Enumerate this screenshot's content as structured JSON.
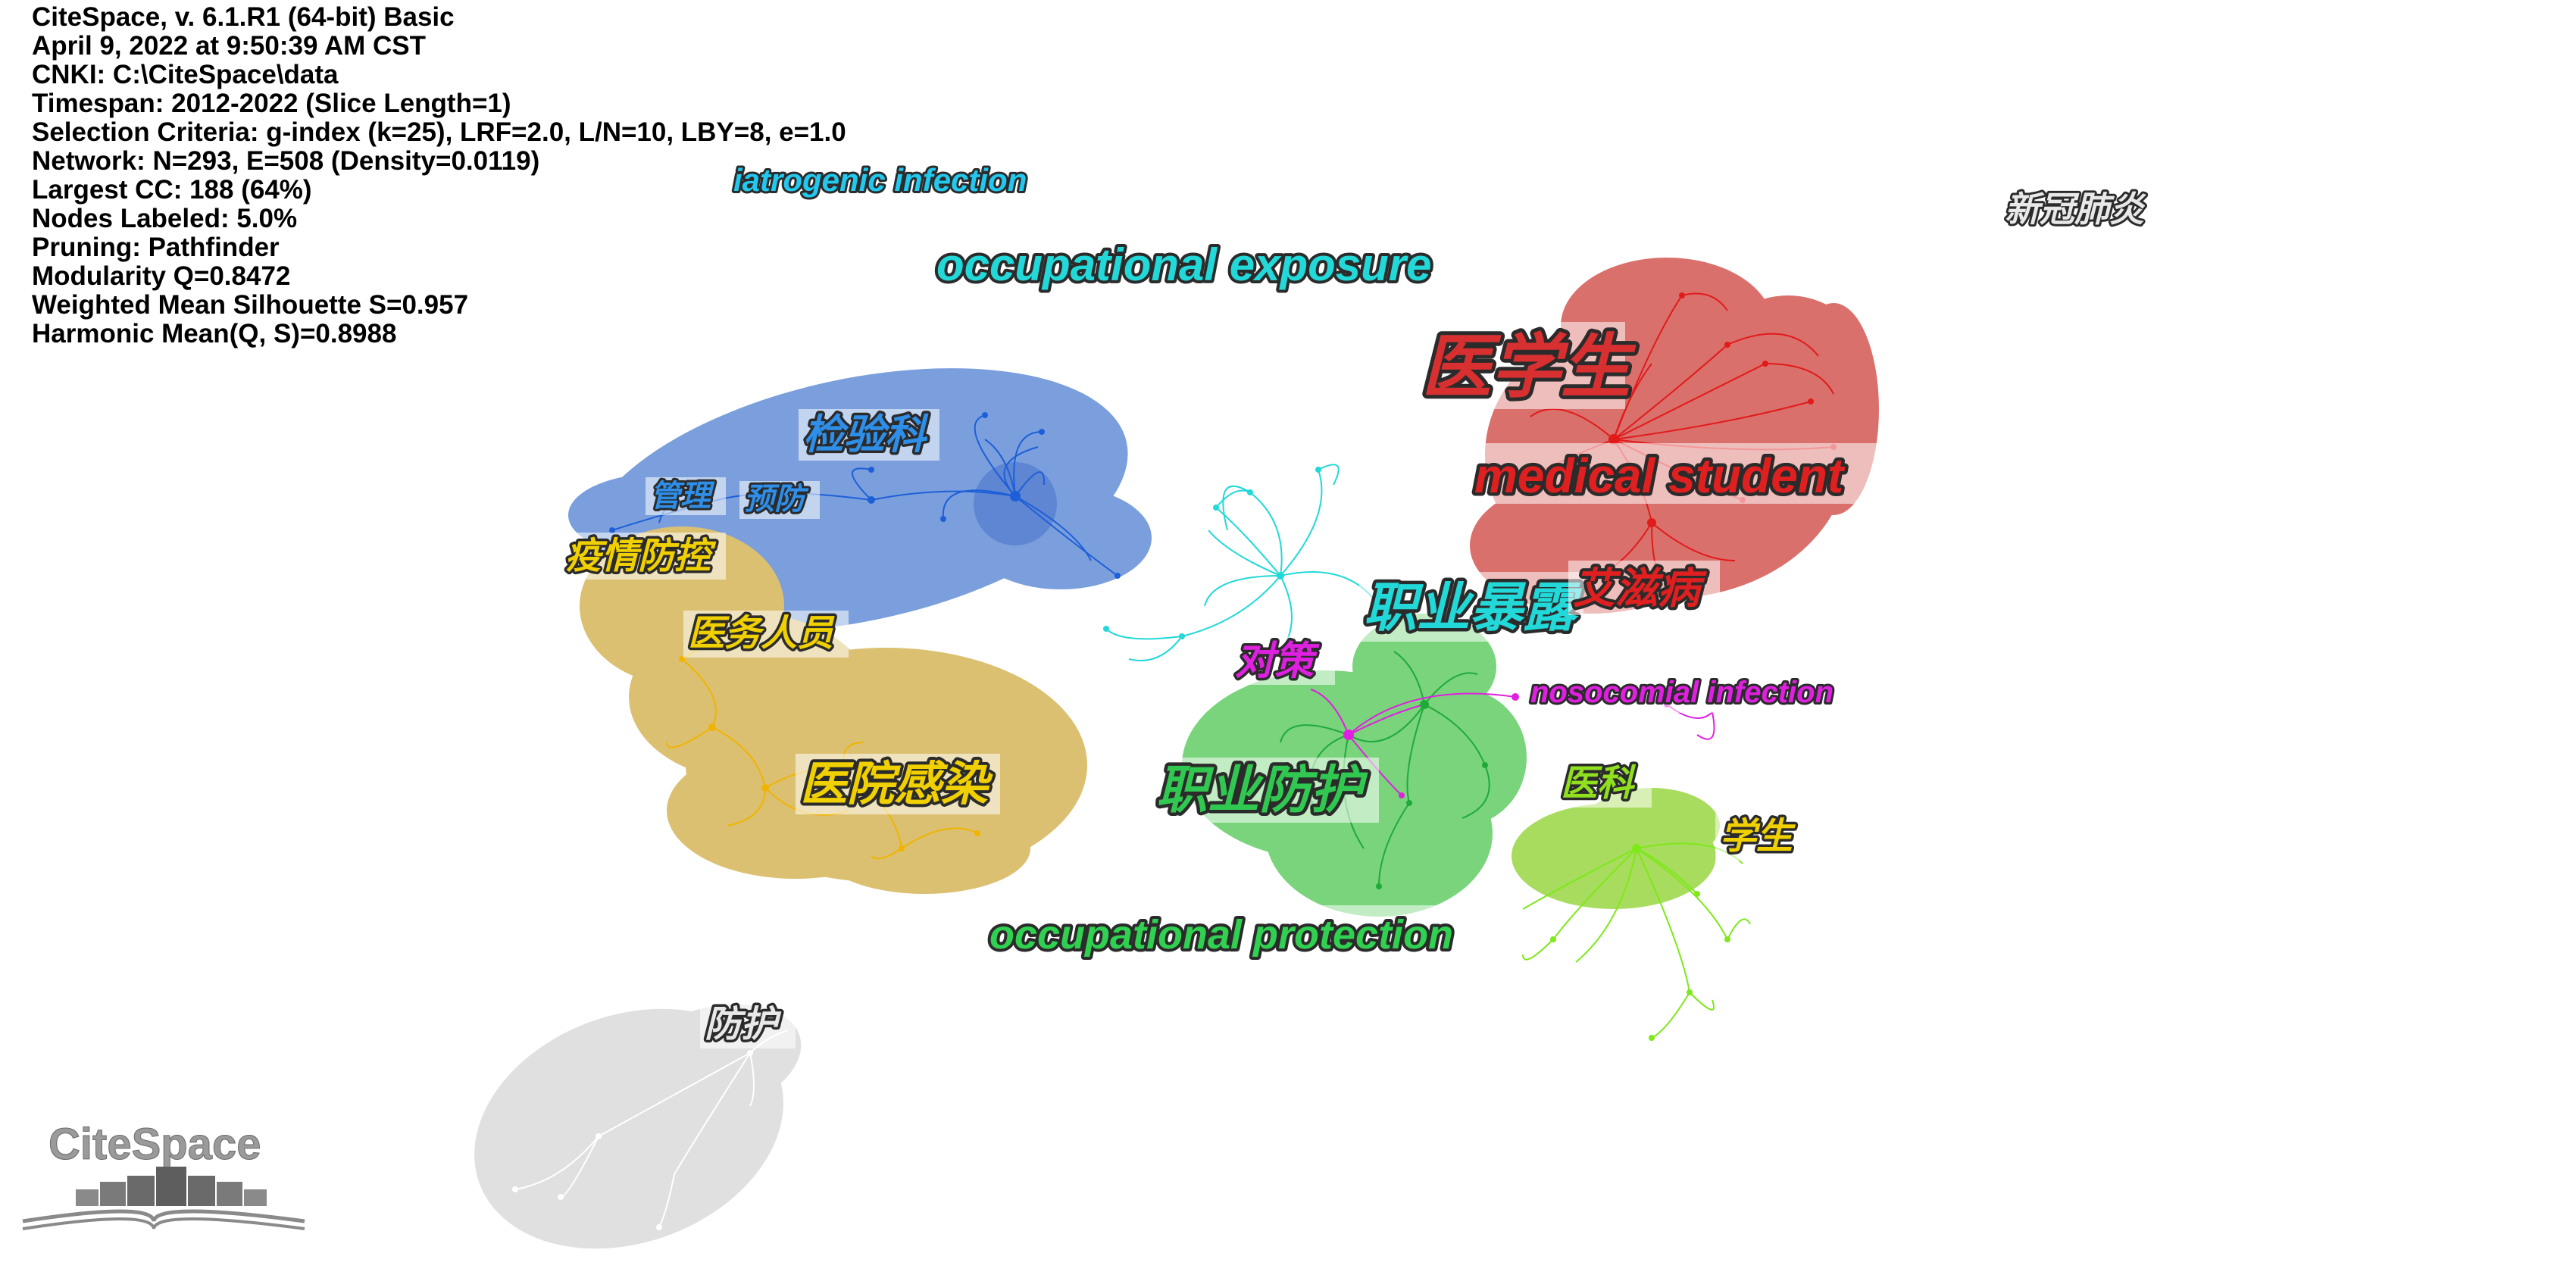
{
  "info": [
    "CiteSpace, v. 6.1.R1 (64-bit) Basic",
    "April 9, 2022 at 9:50:39 AM CST",
    "CNKI: C:\\CiteSpace\\data",
    "Timespan: 2012-2022 (Slice Length=1)",
    "Selection Criteria: g-index (k=25), LRF=2.0, L/N=10, LBY=8, e=1.0",
    "Network: N=293, E=508 (Density=0.0119)",
    "Largest CC: 188 (64%)",
    "Nodes Labeled: 5.0%",
    "Pruning: Pathfinder",
    "Modularity Q=0.8472",
    "Weighted Mean Silhouette S=0.957",
    "Harmonic Mean(Q, S)=0.8988"
  ],
  "logo": {
    "text": "CiteSpace"
  },
  "colors": {
    "blue": "#7b9fdc",
    "blue_edge": "#1e5fd8",
    "tan": "#dcc072",
    "tan_edge": "#f0b400",
    "red": "#d9706c",
    "red_edge": "#e21a1a",
    "green": "#79d47c",
    "green_edge": "#1faa3a",
    "lime": "#a8dc5e",
    "lime_edge": "#7ee81a",
    "gray": "#e0e0e0",
    "gray_edge": "#ffffff",
    "cyan": "#22d8d8",
    "magenta": "#e020e0"
  },
  "labels": [
    {
      "id": "iatrogenic-infection",
      "text": "iatrogenic infection",
      "color": "#22c8ee"
    },
    {
      "id": "occupational-exposure",
      "text": "occupational exposure",
      "color": "#22d8d8"
    },
    {
      "id": "xinguan-feiyan",
      "text": "新冠肺炎",
      "color": "#e8e8e8"
    },
    {
      "id": "yixuesheng",
      "text": "医学生",
      "color": "#d83030"
    },
    {
      "id": "medical-student",
      "text": "medical student",
      "color": "#e02020"
    },
    {
      "id": "jianyanke",
      "text": "检验科",
      "color": "#2e8ee8"
    },
    {
      "id": "guanli",
      "text": "管理",
      "color": "#2e8ee8"
    },
    {
      "id": "yufang",
      "text": "预防",
      "color": "#2e8ee8"
    },
    {
      "id": "yiqing-fangkong",
      "text": "疫情防控",
      "color": "#f0d000"
    },
    {
      "id": "yiwu-renyuan",
      "text": "医务人员",
      "color": "#f0d000"
    },
    {
      "id": "zhiye-baolu",
      "text": "职业暴露",
      "color": "#22d8d8"
    },
    {
      "id": "aizibing",
      "text": "艾滋病",
      "color": "#e02020"
    },
    {
      "id": "duice",
      "text": "对策",
      "color": "#e020e0"
    },
    {
      "id": "nosocomial-infection",
      "text": "nosocomial infection",
      "color": "#e020e0"
    },
    {
      "id": "yiyuan-ganran",
      "text": "医院感染",
      "color": "#f0d000"
    },
    {
      "id": "zhiye-fanghu",
      "text": "职业防护",
      "color": "#30c850"
    },
    {
      "id": "yike",
      "text": "医科",
      "color": "#90e020"
    },
    {
      "id": "xuesheng",
      "text": "学生",
      "color": "#f0d000"
    },
    {
      "id": "occupational-protection",
      "text": "occupational protection",
      "color": "#30d050"
    },
    {
      "id": "fanghu",
      "text": "防护",
      "color": "#e8e8e8"
    }
  ]
}
